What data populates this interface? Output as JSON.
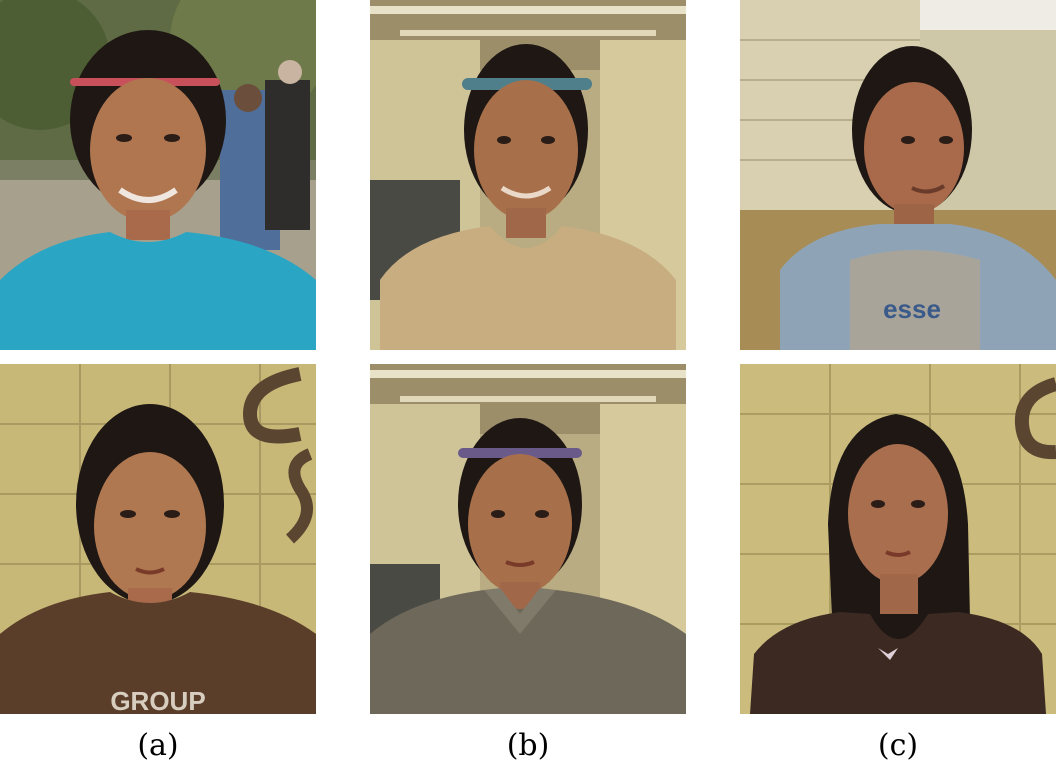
{
  "captions": {
    "a": "(a)",
    "b": "(b)",
    "c": "(c)"
  },
  "photos": {
    "a_top": {
      "shirt_text": ""
    },
    "a_bottom": {
      "shirt_text": "GROUP"
    },
    "c_top": {
      "shirt_text": "esse"
    }
  },
  "colors": {
    "skin": "#a86a4a",
    "hair": "#1e1714",
    "wall_yellow": "#c8b878",
    "teal_shirt": "#2aa6c4",
    "beige_shirt": "#c8ad80",
    "gray_hoodie": "#8ea4b6",
    "brown_shirt": "#5a3e2a",
    "gray_polo": "#6e685a",
    "dark_top": "#3c2a22"
  }
}
